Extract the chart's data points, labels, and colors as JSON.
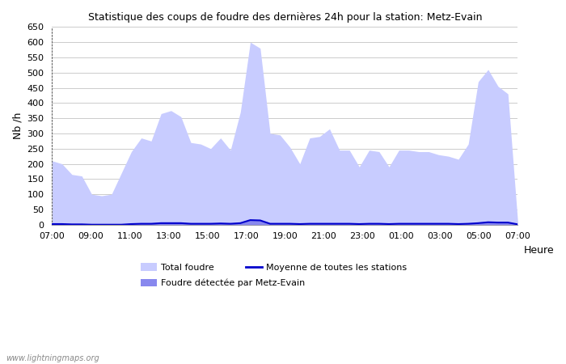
{
  "title": "Statistique des coups de foudre des dernières 24h pour la station: Metz-Evain",
  "xlabel": "Heure",
  "ylabel": "Nb /h",
  "watermark": "www.lightningmaps.org",
  "xlim_labels": [
    "07:00",
    "09:00",
    "11:00",
    "13:00",
    "15:00",
    "17:00",
    "19:00",
    "21:00",
    "23:00",
    "01:00",
    "03:00",
    "05:00",
    "07:00"
  ],
  "xlim_tick_pos": [
    0,
    2,
    4,
    6,
    8,
    10,
    12,
    14,
    16,
    18,
    20,
    22,
    24
  ],
  "ylim": [
    0,
    650
  ],
  "yticks": [
    0,
    50,
    100,
    150,
    200,
    250,
    300,
    350,
    400,
    450,
    500,
    550,
    600,
    650
  ],
  "total_foudre_color": "#c8ccff",
  "foudre_metz_color": "#8888ee",
  "moyenne_color": "#0000cc",
  "background_color": "#ffffff",
  "grid_color": "#cccccc",
  "total_foudre": [
    210,
    200,
    165,
    160,
    100,
    95,
    100,
    170,
    240,
    285,
    275,
    365,
    375,
    355,
    270,
    265,
    250,
    285,
    245,
    370,
    600,
    580,
    300,
    295,
    255,
    200,
    285,
    290,
    315,
    245,
    245,
    190,
    245,
    240,
    190,
    245,
    245,
    240,
    240,
    230,
    225,
    215,
    265,
    470,
    510,
    455,
    430,
    5
  ],
  "foudre_metz": [
    2,
    2,
    1,
    1,
    0,
    0,
    0,
    0,
    2,
    3,
    3,
    5,
    5,
    5,
    3,
    3,
    3,
    4,
    3,
    5,
    15,
    14,
    3,
    3,
    3,
    2,
    3,
    3,
    3,
    3,
    3,
    2,
    3,
    3,
    2,
    3,
    3,
    3,
    3,
    3,
    3,
    2,
    3,
    5,
    8,
    7,
    7,
    1
  ],
  "moyenne": [
    2,
    2,
    1,
    1,
    0,
    0,
    0,
    0,
    2,
    3,
    3,
    5,
    5,
    5,
    3,
    3,
    3,
    4,
    3,
    5,
    15,
    14,
    3,
    3,
    3,
    2,
    3,
    3,
    3,
    3,
    3,
    2,
    3,
    3,
    2,
    3,
    3,
    3,
    3,
    3,
    3,
    2,
    3,
    5,
    8,
    7,
    7,
    1
  ],
  "legend": {
    "total_foudre_label": "Total foudre",
    "moyenne_label": "Moyenne de toutes les stations",
    "foudre_metz_label": "Foudre détectée par Metz-Evain"
  }
}
